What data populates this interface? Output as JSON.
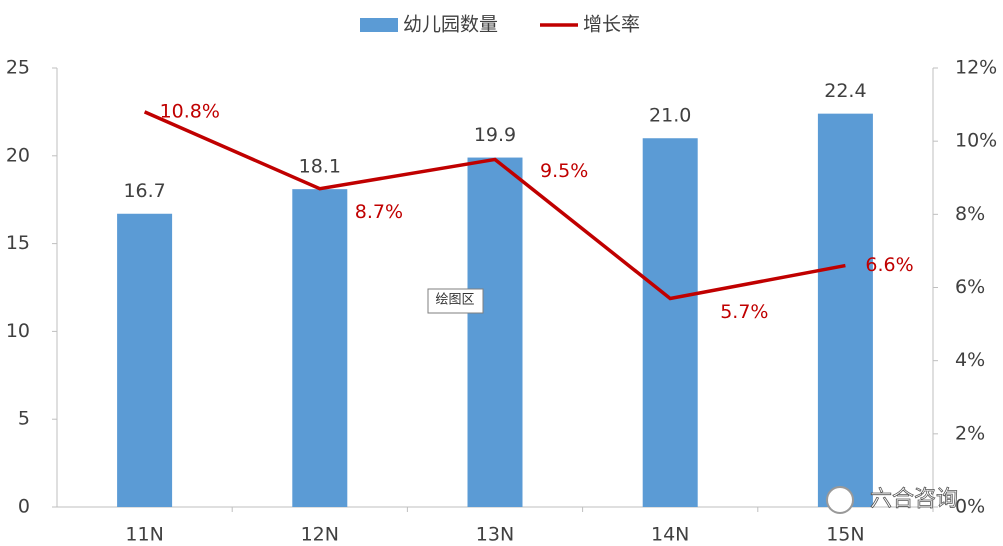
{
  "chart_data": {
    "type": "combo",
    "categories": [
      "11N",
      "12N",
      "13N",
      "14N",
      "15N"
    ],
    "series": [
      {
        "name": "幼儿园数量",
        "type": "bar",
        "color": "#5b9bd5",
        "values": [
          16.7,
          18.1,
          19.9,
          21.0,
          22.4
        ],
        "value_labels": [
          "16.7",
          "18.1",
          "19.9",
          "21.0",
          "22.4"
        ]
      },
      {
        "name": "增长率",
        "type": "line",
        "axis": "y2",
        "color": "#c00000",
        "values": [
          10.8,
          8.7,
          9.5,
          5.7,
          6.6
        ],
        "value_labels": [
          "10.8%",
          "8.7%",
          "9.5%",
          "5.7%",
          "6.6%"
        ]
      }
    ],
    "ylim": [
      0,
      25
    ],
    "yticks": [
      0,
      5,
      10,
      15,
      20,
      25
    ],
    "y2lim": [
      0,
      12
    ],
    "y2ticks": [
      {
        "value": 0,
        "label": "0%"
      },
      {
        "value": 2,
        "label": "2%"
      },
      {
        "value": 4,
        "label": "4%"
      },
      {
        "value": 6,
        "label": "6%"
      },
      {
        "value": 8,
        "label": "8%"
      },
      {
        "value": 10,
        "label": "10%"
      },
      {
        "value": 12,
        "label": "12%"
      }
    ],
    "legend": "top",
    "tooltip": "绘图区",
    "watermark": "六合咨询"
  }
}
